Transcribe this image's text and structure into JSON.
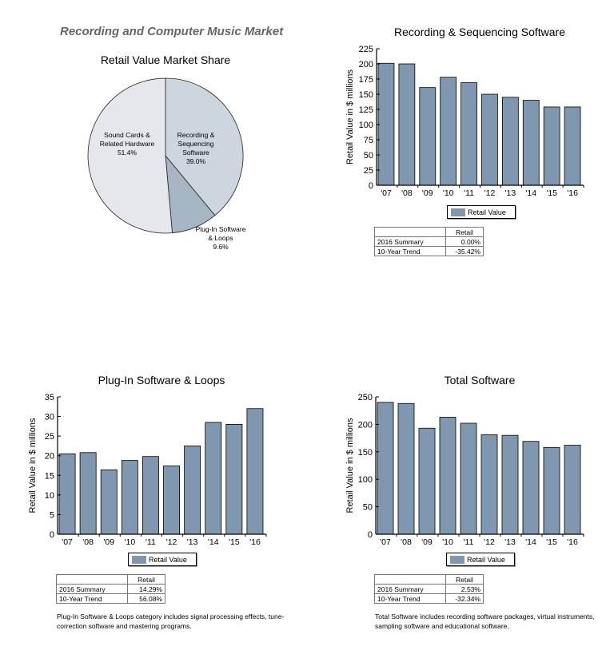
{
  "heading": "Recording and Computer Music Market",
  "colors": {
    "bar": "#7f98b0",
    "pie_recording": "#cdd6df",
    "pie_plugin": "#a6b6c5",
    "pie_sound": "#e4e8ed"
  },
  "chart_data": [
    {
      "type": "pie",
      "title": "Retail Value Market Share",
      "slices": [
        {
          "label_lines": [
            "Recording &",
            "Sequencing",
            "Software"
          ],
          "pct_label": "39.0%",
          "value": 39.0
        },
        {
          "label_lines": [
            "Plug-In Software",
            "& Loops"
          ],
          "pct_label": "9.6%",
          "value": 9.6
        },
        {
          "label_lines": [
            "Sound Cards &",
            "Related Hardware"
          ],
          "pct_label": "51.4%",
          "value": 51.4
        }
      ]
    },
    {
      "type": "bar",
      "title": "Recording & Sequencing Software",
      "ylabel": "Retail Value in $ millions",
      "categories": [
        "'07",
        "'08",
        "'09",
        "'10",
        "'11",
        "'12",
        "'13",
        "'14",
        "'15",
        "'16"
      ],
      "values": [
        201,
        200,
        161,
        178,
        169,
        150,
        145,
        140,
        129,
        129
      ],
      "ylim": [
        0,
        225
      ],
      "yticks": [
        "0",
        "25",
        "50",
        "75",
        "100",
        "125",
        "150",
        "175",
        "200",
        "225"
      ],
      "legend": "Retail Value",
      "legend_position": "bottom",
      "summary": {
        "header": "Retail",
        "rows": [
          {
            "label": "2016 Summary",
            "value": "0.00%"
          },
          {
            "label": "10-Year Trend",
            "value": "-35.42%"
          }
        ]
      }
    },
    {
      "type": "bar",
      "title": "Plug-In Software & Loops",
      "ylabel": "Retail Value in $ millions",
      "categories": [
        "'07",
        "'08",
        "'09",
        "'10",
        "'11",
        "'12",
        "'13",
        "'14",
        "'15",
        "'16"
      ],
      "values": [
        20.5,
        20.8,
        16.4,
        18.8,
        19.8,
        17.4,
        22.5,
        28.5,
        28.0,
        32.0
      ],
      "ylim": [
        0,
        35
      ],
      "yticks": [
        "0",
        "5",
        "10",
        "15",
        "20",
        "25",
        "30",
        "35"
      ],
      "legend": "Retail Value",
      "legend_position": "bottom",
      "summary": {
        "header": "Retail",
        "rows": [
          {
            "label": "2016 Summary",
            "value": "14.29%"
          },
          {
            "label": "10-Year Trend",
            "value": "56.08%"
          }
        ]
      },
      "note": "Plug-In Software & Loops category includes signal processing effects, tune-correction software and mastering programs."
    },
    {
      "type": "bar",
      "title": "Total Software",
      "ylabel": "Retail Value in $ millions",
      "categories": [
        "'07",
        "'08",
        "'09",
        "'10",
        "'11",
        "'12",
        "'13",
        "'14",
        "'15",
        "'16"
      ],
      "values": [
        240,
        238,
        193,
        213,
        202,
        181,
        180,
        169,
        158,
        162
      ],
      "ylim": [
        0,
        250
      ],
      "yticks": [
        "0",
        "50",
        "100",
        "150",
        "200",
        "250"
      ],
      "legend": "Retail Value",
      "legend_position": "bottom",
      "summary": {
        "header": "Retail",
        "rows": [
          {
            "label": "2016 Summary",
            "value": "2.53%"
          },
          {
            "label": "10-Year Trend",
            "value": "-32.34%"
          }
        ]
      },
      "note": "Total Software includes recording software packages, virtual instruments, sampling software and educational software."
    }
  ]
}
